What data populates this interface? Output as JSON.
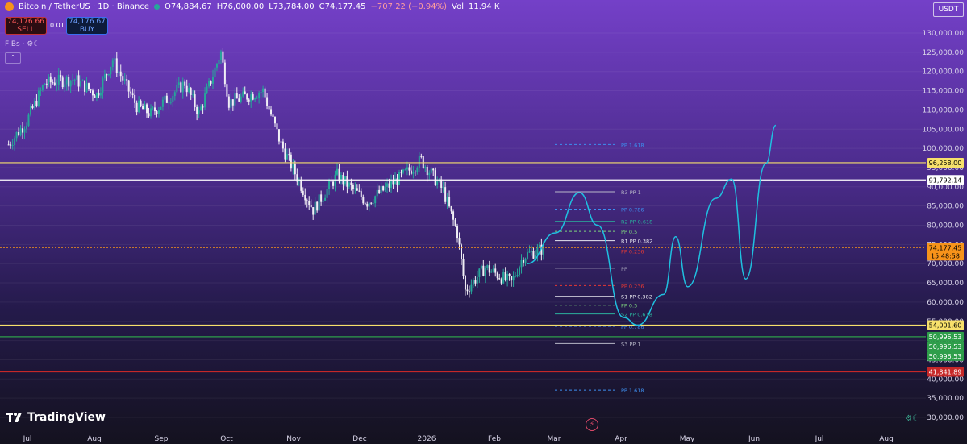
{
  "header": {
    "symbol": "Bitcoin / TetherUS · 1D · Binance",
    "open": "O74,884.67",
    "high": "H76,000.00",
    "low": "L73,784.00",
    "close": "C74,177.45",
    "change": "−707.22 (−0.94%)",
    "volume_label": "Vol",
    "volume": "11.94 K",
    "sell_price": "74,176.66",
    "sell_label": "SELL",
    "spread": "0.01",
    "buy_price": "74,176.67",
    "buy_label": "BUY",
    "indicator": "FIBs · ⚙☾",
    "currency": "USDT",
    "collapse": "⌃",
    "brand": "TradingView"
  },
  "colors": {
    "candle_up": "#26a69a",
    "candle_down": "#f0eef5",
    "drawing": "#1fc0e0",
    "pivot_label_bg": "#f7931a"
  },
  "chart_data": {
    "type": "candlestick",
    "x_labels": [
      "Jul",
      "Aug",
      "Sep",
      "Oct",
      "Nov",
      "Dec",
      "2026",
      "Feb",
      "Mar",
      "Apr",
      "May",
      "Jun",
      "Jul",
      "Aug"
    ],
    "y_ticks": [
      30000,
      35000,
      40000,
      45000,
      50000,
      55000,
      60000,
      65000,
      70000,
      75000,
      80000,
      85000,
      90000,
      95000,
      100000,
      105000,
      110000,
      115000,
      120000,
      125000,
      130000
    ],
    "ylim": [
      30000,
      132000
    ],
    "close_path": [
      {
        "date": "2025-06-22",
        "close": 101000
      },
      {
        "date": "2025-07-01",
        "close": 107000
      },
      {
        "date": "2025-07-10",
        "close": 117000
      },
      {
        "date": "2025-07-25",
        "close": 118000
      },
      {
        "date": "2025-08-05",
        "close": 114000
      },
      {
        "date": "2025-08-13",
        "close": 123000
      },
      {
        "date": "2025-08-25",
        "close": 111000
      },
      {
        "date": "2025-09-01",
        "close": 109000
      },
      {
        "date": "2025-09-18",
        "close": 117000
      },
      {
        "date": "2025-09-25",
        "close": 109000
      },
      {
        "date": "2025-10-06",
        "close": 125000
      },
      {
        "date": "2025-10-10",
        "close": 112000
      },
      {
        "date": "2025-10-27",
        "close": 115000
      },
      {
        "date": "2025-11-05",
        "close": 101000
      },
      {
        "date": "2025-11-21",
        "close": 84000
      },
      {
        "date": "2025-12-03",
        "close": 93000
      },
      {
        "date": "2025-12-18",
        "close": 86000
      },
      {
        "date": "2026-01-05",
        "close": 93000
      },
      {
        "date": "2026-01-14",
        "close": 97000
      },
      {
        "date": "2026-01-25",
        "close": 89000
      },
      {
        "date": "2026-02-01",
        "close": 78000
      },
      {
        "date": "2026-02-05",
        "close": 63000
      },
      {
        "date": "2026-02-15",
        "close": 69000
      },
      {
        "date": "2026-02-28",
        "close": 65000
      },
      {
        "date": "2026-03-06",
        "close": 72000
      },
      {
        "date": "2026-03-17",
        "close": 74177.45
      }
    ],
    "horizontal_levels": [
      {
        "value": 96258.0,
        "label": "96,258.00",
        "color": "#f7e06b",
        "text_color": "#000"
      },
      {
        "value": 91792.14,
        "label": "91,792.14",
        "color": "#ffffff",
        "text_color": "#000"
      },
      {
        "value": 74177.45,
        "label": "74,177.45",
        "label2": "15:48:58",
        "color": "#f7931a",
        "text_color": "#000"
      },
      {
        "value": 54001.6,
        "label": "54,001.60",
        "color": "#f7e06b",
        "text_color": "#000"
      },
      {
        "value": 50996.53,
        "label": "50,996.53",
        "color": "#2e9e4a",
        "text_color": "#fff"
      },
      {
        "value": 41841.89,
        "label": "41,841.89",
        "color": "#c62828",
        "text_color": "#fff"
      }
    ],
    "pivot_levels": [
      {
        "value": 101000,
        "label": "PP 1.618",
        "color": "#3d8ff0",
        "dash": true
      },
      {
        "value": 88700,
        "label": "R3 PP 1",
        "color": "#b8b8c8",
        "dash": false
      },
      {
        "value": 84200,
        "label": "PP 0.786",
        "color": "#3d8ff0",
        "dash": true
      },
      {
        "value": 81000,
        "label": "R2 PP 0.618",
        "color": "#2bb29c",
        "dash": false
      },
      {
        "value": 78400,
        "label": "PP 0.5",
        "color": "#7ed37e",
        "dash": true
      },
      {
        "value": 76000,
        "label": "R1 PP 0.382",
        "color": "#e8e8f0",
        "dash": false
      },
      {
        "value": 73300,
        "label": "PP 0.236",
        "color": "#e53935",
        "dash": true
      },
      {
        "value": 68800,
        "label": "PP",
        "color": "#9a96b0",
        "dash": false
      },
      {
        "value": 64300,
        "label": "PP 0.236",
        "color": "#e53935",
        "dash": true
      },
      {
        "value": 61500,
        "label": "S1 PP 0.382",
        "color": "#e8e8f0",
        "dash": false
      },
      {
        "value": 59200,
        "label": "PP 0.5",
        "color": "#7ed37e",
        "dash": true
      },
      {
        "value": 56900,
        "label": "S2 PP 0.618",
        "color": "#2bb29c",
        "dash": false
      },
      {
        "value": 53700,
        "label": "PP 0.786",
        "color": "#3d8ff0",
        "dash": true
      },
      {
        "value": 49200,
        "label": "S3 PP 1",
        "color": "#b8b8c8",
        "dash": false
      },
      {
        "value": 37100,
        "label": "PP 1.618",
        "color": "#3d8ff0",
        "dash": true
      }
    ],
    "projection_path": [
      {
        "date": "2026-03-08",
        "value": 70000
      },
      {
        "date": "2026-03-22",
        "value": 78000
      },
      {
        "date": "2026-04-03",
        "value": 88500
      },
      {
        "date": "2026-04-12",
        "value": 80000
      },
      {
        "date": "2026-04-25",
        "value": 56000
      },
      {
        "date": "2026-05-02",
        "value": 54000
      },
      {
        "date": "2026-05-15",
        "value": 62000
      },
      {
        "date": "2026-05-21",
        "value": 77000
      },
      {
        "date": "2026-05-27",
        "value": 64000
      },
      {
        "date": "2026-06-10",
        "value": 87000
      },
      {
        "date": "2026-06-18",
        "value": 92000
      },
      {
        "date": "2026-06-25",
        "value": 66000
      },
      {
        "date": "2026-07-05",
        "value": 96000
      },
      {
        "date": "2026-07-10",
        "value": 106000
      }
    ]
  }
}
